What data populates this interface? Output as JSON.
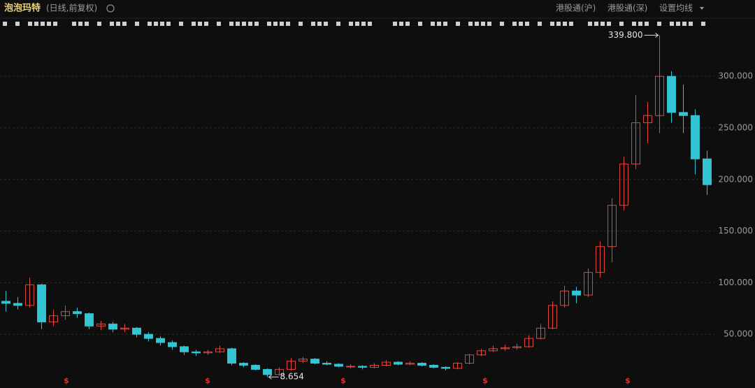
{
  "chart_data": {
    "type": "candlestick",
    "title": "泡泡玛特",
    "subtitle": "(日线,前复权)",
    "menu_items": [
      "港股通(沪)",
      "港股通(深)",
      "设置均线"
    ],
    "categories": [
      null,
      null,
      null,
      null,
      null,
      null,
      null,
      null,
      null,
      null,
      null,
      null,
      null,
      null,
      null,
      null,
      null,
      null,
      null,
      null,
      null,
      null,
      null,
      null,
      null,
      null,
      null,
      null,
      null,
      null,
      null,
      null,
      null,
      null,
      null,
      null,
      null,
      null,
      null,
      null,
      null,
      null,
      null,
      null,
      null,
      null,
      null,
      null,
      null,
      null,
      null,
      null,
      null,
      null,
      null,
      null,
      null,
      null,
      null,
      null
    ],
    "ohlc": [
      [
        82,
        92,
        72,
        80
      ],
      [
        80,
        86,
        74,
        78
      ],
      [
        78,
        105,
        76,
        98
      ],
      [
        98,
        99,
        55,
        62
      ],
      [
        62,
        74,
        58,
        68
      ],
      [
        68,
        78,
        64,
        72
      ],
      [
        72,
        76,
        66,
        70
      ],
      [
        70,
        71,
        55,
        58
      ],
      [
        58,
        63,
        54,
        60
      ],
      [
        60,
        62,
        52,
        55
      ],
      [
        55,
        60,
        52,
        56
      ],
      [
        56,
        57,
        47,
        50
      ],
      [
        50,
        52,
        43,
        46
      ],
      [
        46,
        48,
        39,
        42
      ],
      [
        42,
        44,
        35,
        38
      ],
      [
        38,
        39,
        30,
        33
      ],
      [
        33,
        35,
        29,
        32
      ],
      [
        32,
        35,
        30,
        33
      ],
      [
        33,
        39,
        32,
        36
      ],
      [
        36,
        37,
        20,
        22
      ],
      [
        22,
        23,
        18,
        20
      ],
      [
        20,
        21,
        15,
        16
      ],
      [
        16,
        17,
        8.654,
        11
      ],
      [
        11,
        18,
        10,
        16
      ],
      [
        16,
        27,
        15,
        24
      ],
      [
        24,
        28,
        22,
        26
      ],
      [
        26,
        27,
        21,
        22
      ],
      [
        22,
        24,
        20,
        21
      ],
      [
        21,
        22,
        18,
        19
      ],
      [
        19,
        21,
        17,
        19
      ],
      [
        19,
        20,
        16,
        18
      ],
      [
        18,
        22,
        17,
        20
      ],
      [
        20,
        25,
        19,
        23
      ],
      [
        23,
        24,
        20,
        21
      ],
      [
        21,
        24,
        20,
        22
      ],
      [
        22,
        23,
        19,
        20
      ],
      [
        20,
        21,
        17,
        18
      ],
      [
        18,
        19,
        15,
        17
      ],
      [
        17,
        23,
        16,
        22
      ],
      [
        22,
        31,
        21,
        30
      ],
      [
        30,
        36,
        29,
        34
      ],
      [
        34,
        39,
        33,
        36
      ],
      [
        36,
        40,
        34,
        37
      ],
      [
        37,
        41,
        35,
        38
      ],
      [
        38,
        49,
        37,
        46
      ],
      [
        46,
        60,
        45,
        56
      ],
      [
        56,
        82,
        55,
        78
      ],
      [
        78,
        97,
        76,
        92
      ],
      [
        92,
        96,
        80,
        88
      ],
      [
        88,
        114,
        86,
        110
      ],
      [
        110,
        140,
        105,
        135
      ],
      [
        135,
        182,
        120,
        175
      ],
      [
        175,
        222,
        170,
        215
      ],
      [
        215,
        282,
        210,
        255
      ],
      [
        255,
        275,
        235,
        262
      ],
      [
        262,
        339.8,
        245,
        300
      ],
      [
        300,
        305,
        255,
        265
      ],
      [
        265,
        292,
        245,
        262
      ],
      [
        262,
        268,
        205,
        220
      ],
      [
        220,
        228,
        185,
        195
      ]
    ],
    "up_color": "#e8453c",
    "down_color": "#33c5d4",
    "max_label": "339.800",
    "min_label": "8.654",
    "dividend_marks": [
      "$",
      "$",
      "$",
      "$",
      "$"
    ],
    "ylim": [
      0,
      355
    ],
    "yticks": [
      {
        "value": 50,
        "label": "50.000"
      },
      {
        "value": 100,
        "label": "100.000"
      },
      {
        "value": 150,
        "label": "150.000"
      },
      {
        "value": 200,
        "label": "200.000"
      },
      {
        "value": 250,
        "label": "250.000"
      },
      {
        "value": 300,
        "label": "300.000"
      }
    ],
    "grid": true
  }
}
